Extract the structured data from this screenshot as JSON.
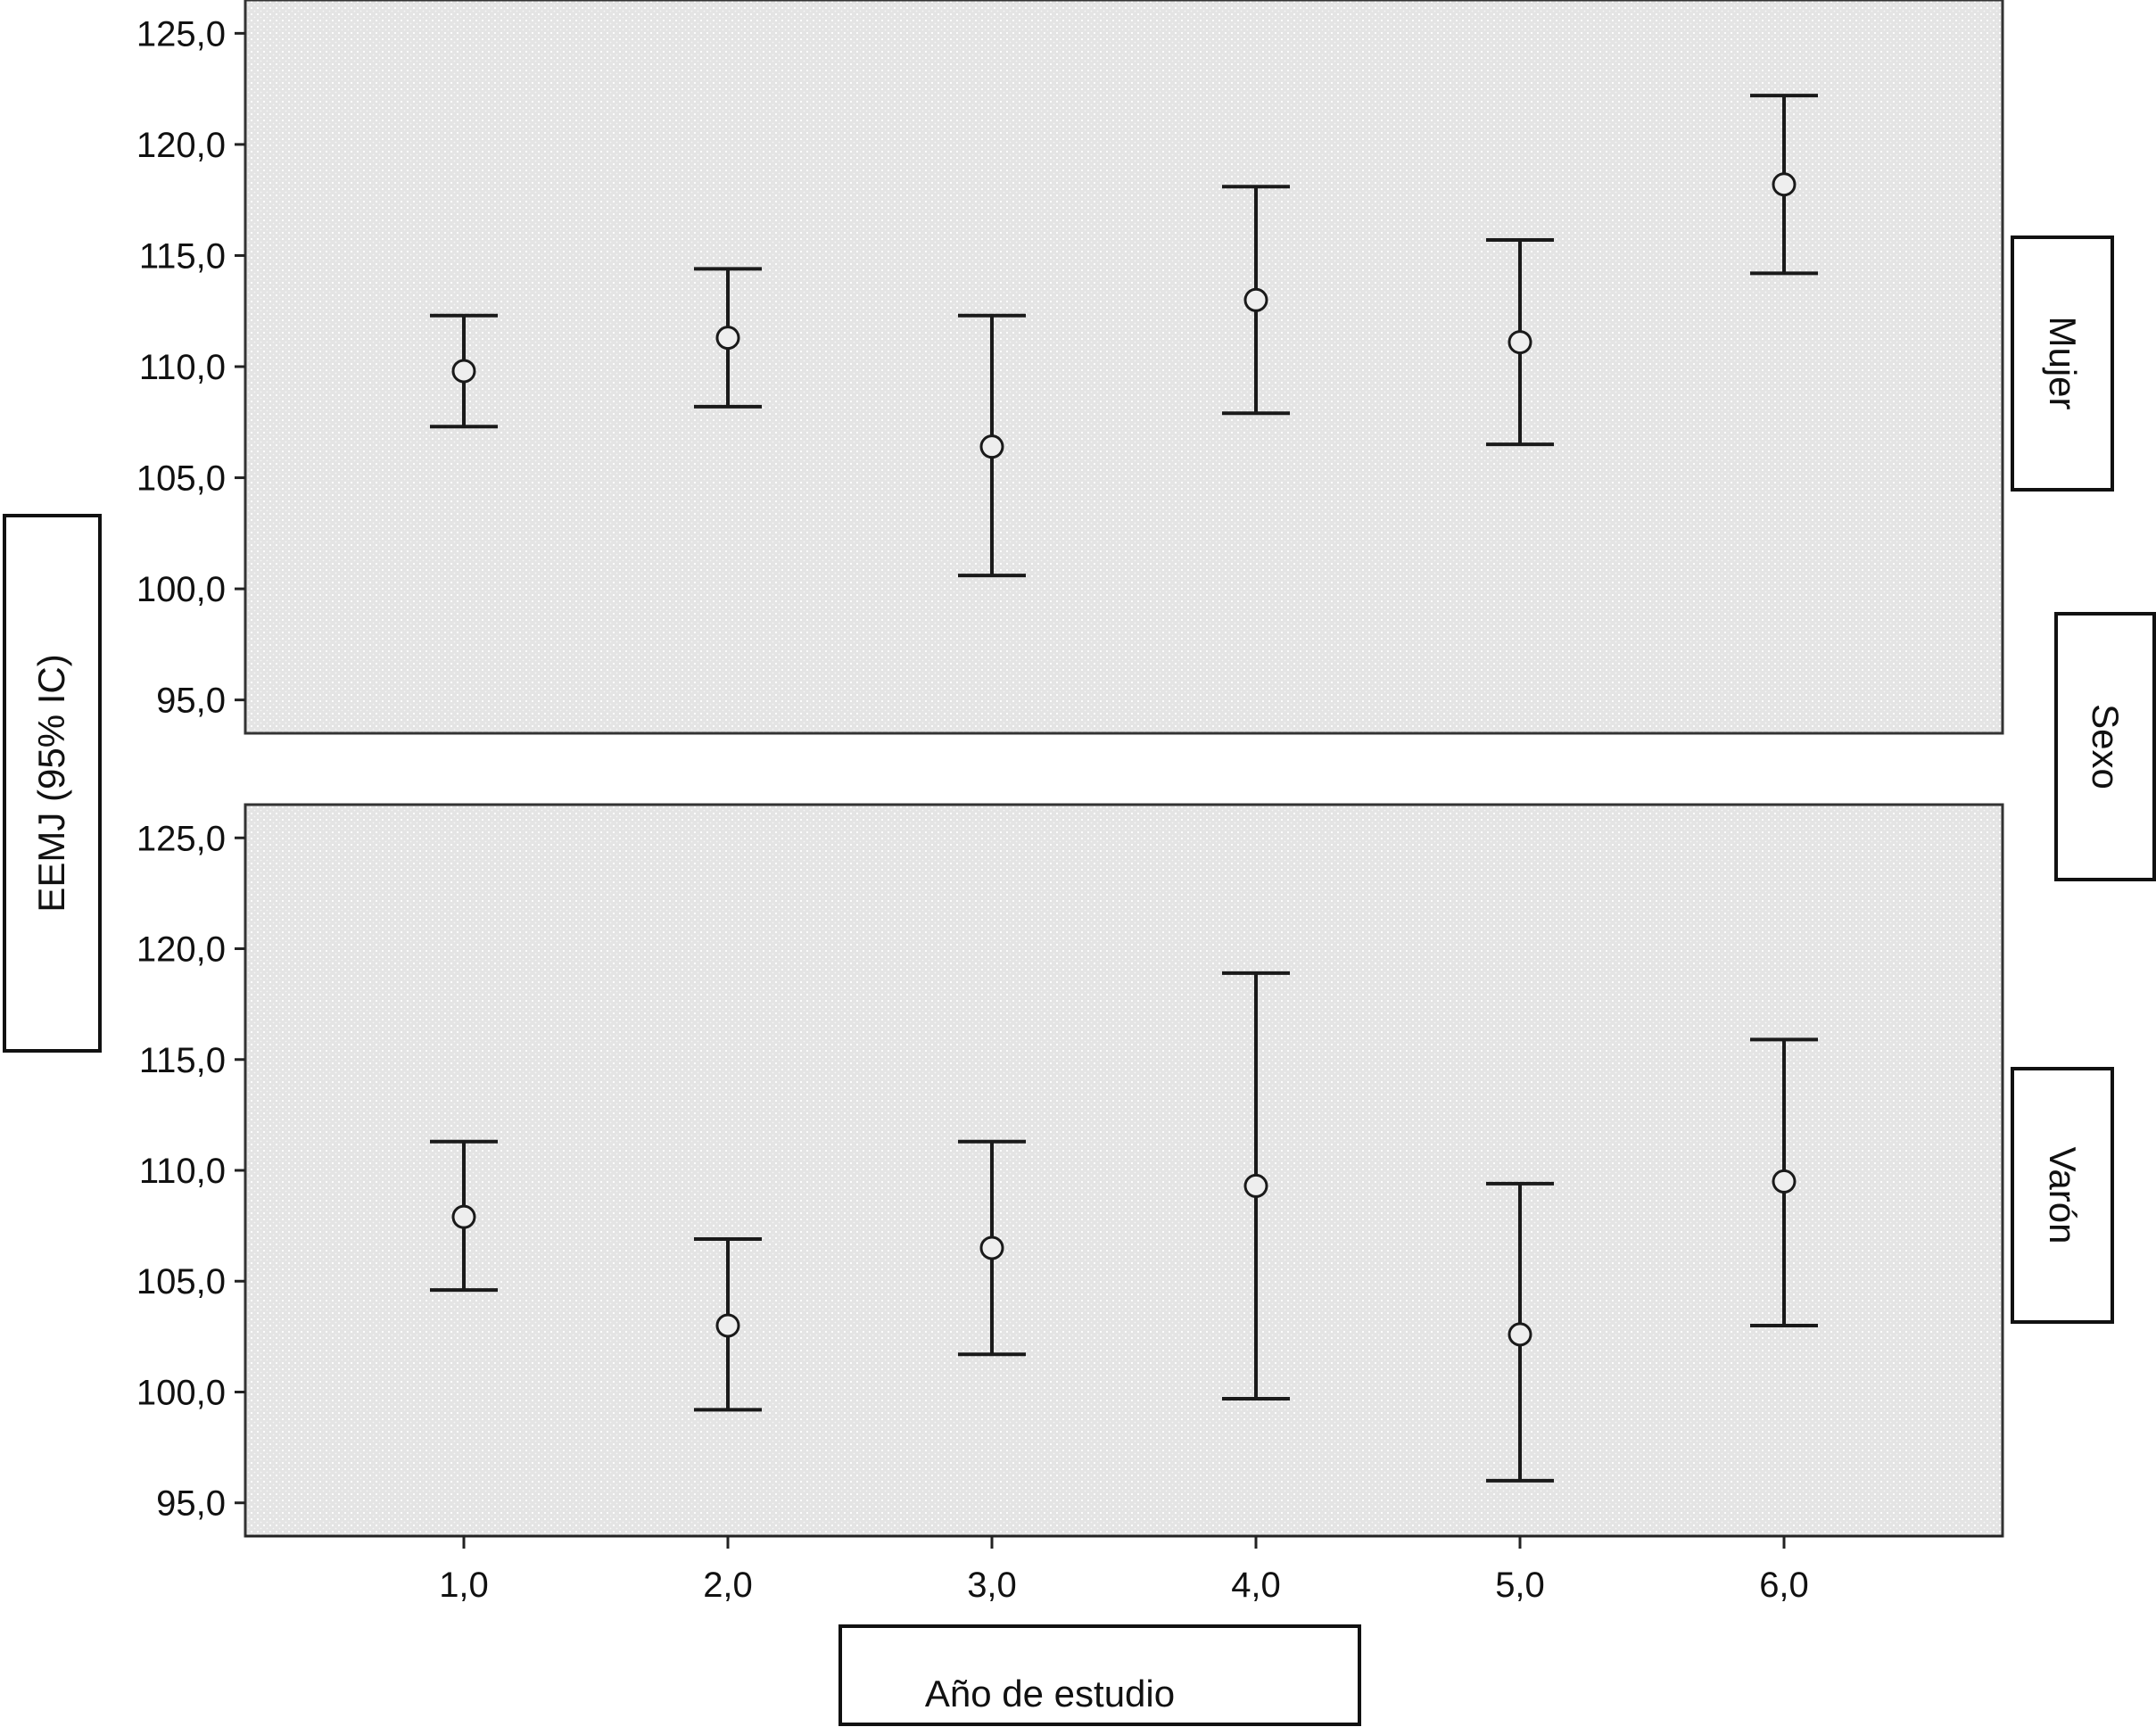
{
  "chart_data": {
    "type": "errorbar",
    "ylabel": "EEMJ (95% IC)",
    "xlabel": "Año de estudio",
    "panel_group_label": "Sexo",
    "categories": [
      "1,0",
      "2,0",
      "3,0",
      "4,0",
      "5,0",
      "6,0"
    ],
    "x": [
      1,
      2,
      3,
      4,
      5,
      6
    ],
    "ylim": [
      93.5,
      126.5
    ],
    "y_ticks": [
      "95,0",
      "100,0",
      "105,0",
      "110,0",
      "115,0",
      "120,0",
      "125,0"
    ],
    "y_tick_values": [
      95,
      100,
      105,
      110,
      115,
      120,
      125
    ],
    "panels": [
      {
        "name": "Mujer",
        "points": [
          {
            "x": 1,
            "mean": 109.8,
            "lower": 107.3,
            "upper": 112.3
          },
          {
            "x": 2,
            "mean": 111.3,
            "lower": 108.2,
            "upper": 114.4
          },
          {
            "x": 3,
            "mean": 106.4,
            "lower": 100.6,
            "upper": 112.3
          },
          {
            "x": 4,
            "mean": 113.0,
            "lower": 107.9,
            "upper": 118.1
          },
          {
            "x": 5,
            "mean": 111.1,
            "lower": 106.5,
            "upper": 115.7
          },
          {
            "x": 6,
            "mean": 118.2,
            "lower": 114.2,
            "upper": 122.2
          }
        ]
      },
      {
        "name": "Varón",
        "points": [
          {
            "x": 1,
            "mean": 107.9,
            "lower": 104.6,
            "upper": 111.3
          },
          {
            "x": 2,
            "mean": 103.0,
            "lower": 99.2,
            "upper": 106.9
          },
          {
            "x": 3,
            "mean": 106.5,
            "lower": 101.7,
            "upper": 111.3
          },
          {
            "x": 4,
            "mean": 109.3,
            "lower": 99.7,
            "upper": 118.9
          },
          {
            "x": 5,
            "mean": 102.6,
            "lower": 96.0,
            "upper": 109.4
          },
          {
            "x": 6,
            "mean": 109.5,
            "lower": 103.0,
            "upper": 115.9
          }
        ]
      }
    ],
    "colors": {
      "panel_background": "#e6e6e6",
      "panel_dots": "#ffffff",
      "marks": "#1a1a1a"
    }
  }
}
